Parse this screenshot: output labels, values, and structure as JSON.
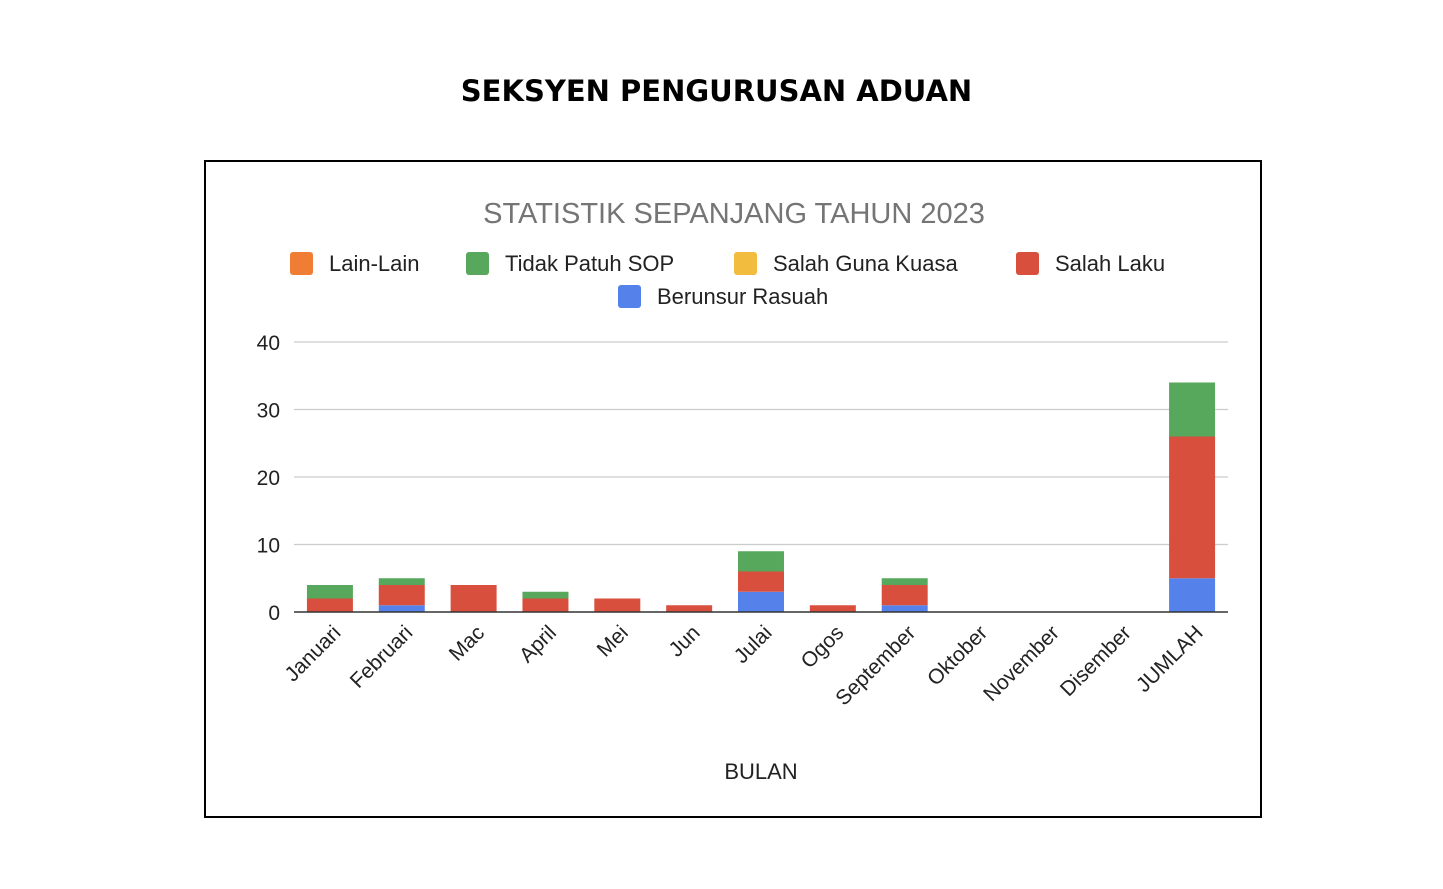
{
  "page": {
    "title": "SEKSYEN PENGURUSAN ADUAN"
  },
  "colors": {
    "lain_lain": "#ef7d33",
    "tidak_patuh_sop": "#57a75c",
    "salah_guna_kuasa": "#f2bd3f",
    "salah_laku": "#d94f3d",
    "berunsur_rasuah": "#5481ea",
    "grid": "#cccccc",
    "axis": "#333333",
    "title_text": "#757575",
    "label_text": "#222222"
  },
  "chart_data": {
    "type": "bar",
    "stacked": true,
    "title": "STATISTIK SEPANJANG TAHUN 2023",
    "xlabel": "BULAN",
    "ylabel": "",
    "ylim": [
      0,
      40
    ],
    "yticks": [
      "0",
      "10",
      "20",
      "30",
      "40"
    ],
    "grid": true,
    "legend_position": "top",
    "categories": [
      "Januari",
      "Februari",
      "Mac",
      "April",
      "Mei",
      "Jun",
      "Julai",
      "Ogos",
      "September",
      "Oktober",
      "November",
      "Disember",
      "JUMLAH"
    ],
    "series": [
      {
        "key": "berunsur_rasuah",
        "name": "Berunsur Rasuah",
        "values": [
          0,
          1,
          0,
          0,
          0,
          0,
          3,
          0,
          1,
          0,
          0,
          0,
          5
        ]
      },
      {
        "key": "salah_laku",
        "name": "Salah Laku",
        "values": [
          2,
          3,
          4,
          2,
          2,
          1,
          3,
          1,
          3,
          0,
          0,
          0,
          21
        ]
      },
      {
        "key": "salah_guna_kuasa",
        "name": "Salah Guna Kuasa",
        "values": [
          0,
          0,
          0,
          0,
          0,
          0,
          0,
          0,
          0,
          0,
          0,
          0,
          0
        ]
      },
      {
        "key": "tidak_patuh_sop",
        "name": "Tidak Patuh SOP",
        "values": [
          2,
          1,
          0,
          1,
          0,
          0,
          3,
          0,
          1,
          0,
          0,
          0,
          8
        ]
      },
      {
        "key": "lain_lain",
        "name": "Lain-Lain",
        "values": [
          0,
          0,
          0,
          0,
          0,
          0,
          0,
          0,
          0,
          0,
          0,
          0,
          0
        ]
      }
    ],
    "legend_order": [
      "lain_lain",
      "tidak_patuh_sop",
      "salah_guna_kuasa",
      "salah_laku",
      "berunsur_rasuah"
    ]
  }
}
